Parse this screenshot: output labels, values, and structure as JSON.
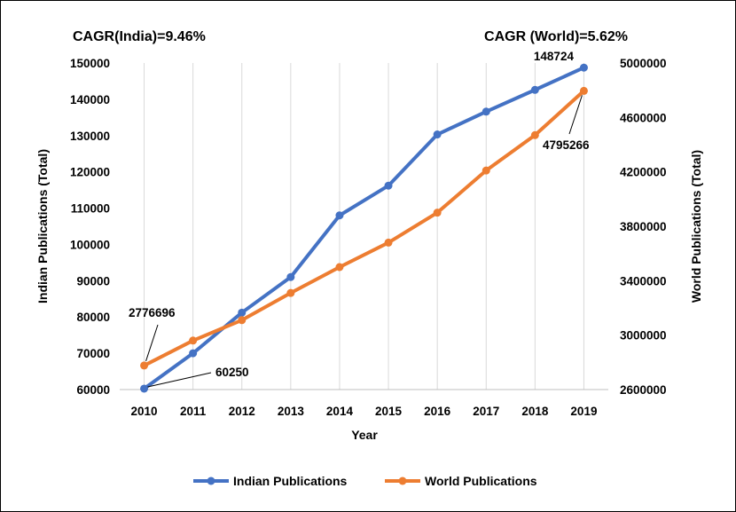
{
  "chart_data": {
    "type": "line",
    "annotations": {
      "cagr_india": "CAGR(India)=9.46%",
      "cagr_world": "CAGR (World)=5.62%"
    },
    "xlabel": "Year",
    "ylabel_left": "Indian Publications (Total)",
    "ylabel_right": "World Publications (Total)",
    "categories": [
      "2010",
      "2011",
      "2012",
      "2013",
      "2014",
      "2015",
      "2016",
      "2017",
      "2018",
      "2019"
    ],
    "y_left_range": [
      60000,
      150000
    ],
    "y_left_ticks": [
      "60000",
      "70000",
      "80000",
      "90000",
      "100000",
      "110000",
      "120000",
      "130000",
      "140000",
      "150000"
    ],
    "y_right_range": [
      2600000,
      5000000
    ],
    "y_right_ticks": [
      "2600000",
      "3000000",
      "3400000",
      "3800000",
      "4200000",
      "4600000",
      "5000000"
    ],
    "grid": "vertical",
    "legend_position": "bottom",
    "series": [
      {
        "name": "Indian Publications",
        "axis": "left",
        "color": "#4472C4",
        "values": [
          60250,
          70000,
          81200,
          91000,
          108000,
          116200,
          130300,
          136600,
          142600,
          148724
        ]
      },
      {
        "name": "World Publications",
        "axis": "right",
        "color": "#ED7D31",
        "values": [
          2776696,
          2960000,
          3110000,
          3310000,
          3500000,
          3680000,
          3900000,
          4210000,
          4470000,
          4795266
        ]
      }
    ],
    "data_labels": {
      "india_first": "60250",
      "india_last": "148724",
      "world_first": "2776696",
      "world_last": "4795266"
    }
  }
}
